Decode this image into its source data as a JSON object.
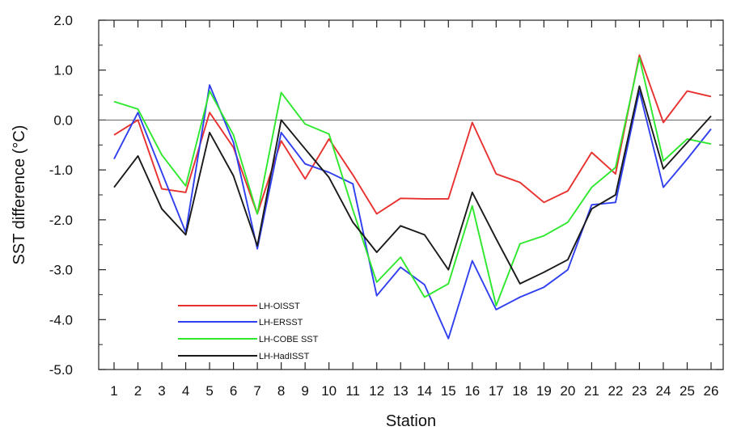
{
  "chart_data": {
    "type": "line",
    "xlabel": "Station",
    "ylabel": "SST difference (°C)",
    "ylim": [
      -5.0,
      2.0
    ],
    "yticks": [
      "2.0",
      "1.0",
      "0.0",
      "-1.0",
      "-2.0",
      "-3.0",
      "-4.0",
      "-5.0"
    ],
    "x": [
      1,
      2,
      3,
      4,
      5,
      6,
      7,
      8,
      9,
      10,
      11,
      12,
      13,
      14,
      15,
      16,
      17,
      18,
      19,
      20,
      21,
      22,
      23,
      24,
      25,
      26
    ],
    "reference_line": 0.0,
    "grid": false,
    "legend_position": "lower-left",
    "series": [
      {
        "name": "LH-OISST",
        "color": "#e8312f",
        "values": [
          -0.3,
          0.0,
          -1.38,
          -1.45,
          0.15,
          -0.55,
          -1.88,
          -0.42,
          -1.18,
          -0.38,
          -1.1,
          -1.88,
          -1.57,
          -1.58,
          -1.58,
          -0.05,
          -1.08,
          -1.25,
          -1.65,
          -1.42,
          -0.65,
          -1.08,
          1.3,
          -0.05,
          0.58,
          0.47
        ]
      },
      {
        "name": "LH-ERSST",
        "color": "#2f3ff0",
        "values": [
          -0.78,
          0.15,
          -1.05,
          -2.25,
          0.7,
          -0.45,
          -2.58,
          -0.25,
          -0.88,
          -1.05,
          -1.28,
          -3.52,
          -2.95,
          -3.3,
          -4.38,
          -2.82,
          -3.8,
          -3.55,
          -3.35,
          -3.0,
          -1.7,
          -1.65,
          0.58,
          -1.35,
          -0.78,
          -0.18
        ]
      },
      {
        "name": "LH-COBE SST",
        "color": "#2ee82e",
        "values": [
          0.37,
          0.22,
          -0.7,
          -1.32,
          0.58,
          -0.3,
          -1.88,
          0.55,
          -0.08,
          -0.28,
          -1.8,
          -3.25,
          -2.75,
          -3.55,
          -3.28,
          -1.72,
          -3.72,
          -2.48,
          -2.32,
          -2.05,
          -1.35,
          -0.95,
          1.25,
          -0.82,
          -0.38,
          -0.48
        ]
      },
      {
        "name": "LH-HadISST",
        "color": "#1a1a1a",
        "values": [
          -1.35,
          -0.72,
          -1.78,
          -2.3,
          -0.25,
          -1.12,
          -2.52,
          0.0,
          -0.58,
          -1.15,
          -2.05,
          -2.65,
          -2.12,
          -2.3,
          -3.0,
          -1.45,
          -2.38,
          -3.28,
          -3.05,
          -2.8,
          -1.78,
          -1.5,
          0.68,
          -0.98,
          -0.45,
          0.08
        ]
      }
    ]
  }
}
